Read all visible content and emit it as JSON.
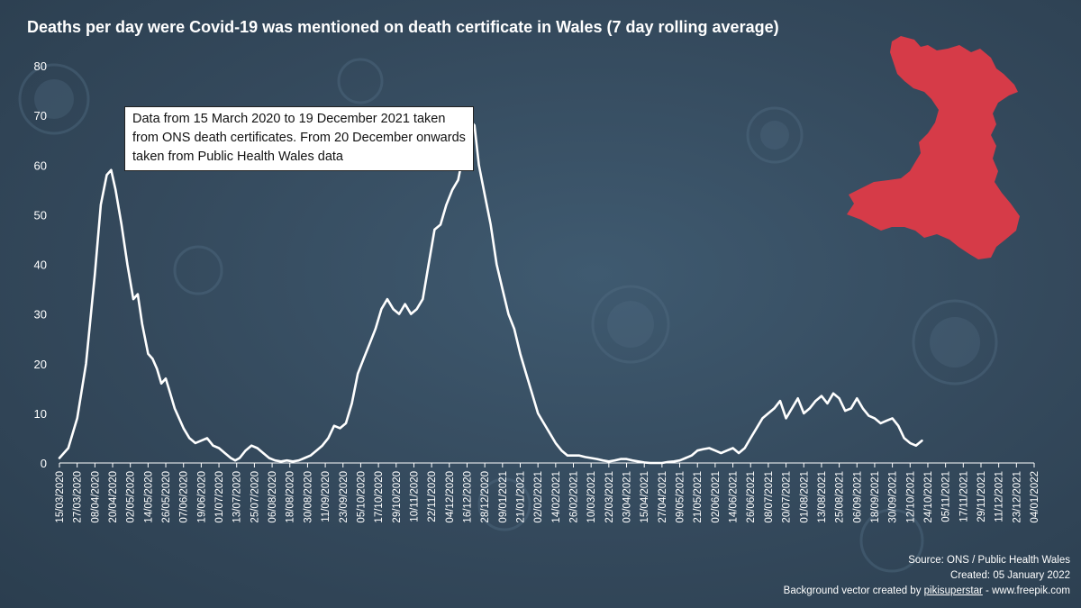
{
  "title": "Deaths per day were Covid-19 was mentioned on death certificate in Wales (7 day rolling average)",
  "note": "Data from 15 March 2020 to 19 December 2021 taken from ONS death certificates.  From 20 December onwards taken from Public Health Wales data",
  "credits": {
    "source": "Source: ONS / Public Health Wales",
    "created": "Created: 05 January 2022",
    "bg_prefix": "Background vector created by ",
    "bg_author": "pikisuperstar",
    "bg_suffix": " - www.freepik.com"
  },
  "colors": {
    "line": "#ffffff",
    "map": "#d63b48",
    "axis": "#ffffff"
  },
  "map_icon": "wales-map-icon",
  "chart_data": {
    "type": "line",
    "title": "Deaths per day were Covid-19 was mentioned on death certificate in Wales (7 day rolling average)",
    "xlabel": "",
    "ylabel": "",
    "ylim": [
      0,
      80
    ],
    "yticks": [
      0,
      10,
      20,
      30,
      40,
      50,
      60,
      70,
      80
    ],
    "x_start": "2020-03-15",
    "x_step_days": 12,
    "xtick_labels": [
      "15/03/2020",
      "27/03/2020",
      "08/04/2020",
      "20/04/2020",
      "02/05/2020",
      "14/05/2020",
      "26/05/2020",
      "07/06/2020",
      "19/06/2020",
      "01/07/2020",
      "13/07/2020",
      "25/07/2020",
      "06/08/2020",
      "18/08/2020",
      "30/08/2020",
      "11/09/2020",
      "23/09/2020",
      "05/10/2020",
      "17/10/2020",
      "29/10/2020",
      "10/11/2020",
      "22/11/2020",
      "04/12/2020",
      "16/12/2020",
      "28/12/2020",
      "09/01/2021",
      "21/01/2021",
      "02/02/2021",
      "14/02/2021",
      "26/02/2021",
      "10/03/2021",
      "22/03/2021",
      "03/04/2021",
      "15/04/2021",
      "27/04/2021",
      "09/05/2021",
      "21/05/2021",
      "02/06/2021",
      "14/06/2021",
      "26/06/2021",
      "08/07/2021",
      "20/07/2021",
      "01/08/2021",
      "13/08/2021",
      "25/08/2021",
      "06/09/2021",
      "18/09/2021",
      "30/09/2021",
      "12/10/2021",
      "24/10/2021",
      "05/11/2021",
      "17/11/2021",
      "29/11/2021",
      "11/12/2021",
      "23/12/2021",
      "04/01/2022"
    ],
    "series": [
      {
        "name": "7 day rolling average",
        "points": [
          [
            0,
            1
          ],
          [
            6,
            3
          ],
          [
            12,
            9
          ],
          [
            18,
            20
          ],
          [
            24,
            38
          ],
          [
            28,
            52
          ],
          [
            32,
            58
          ],
          [
            35,
            59
          ],
          [
            38,
            55
          ],
          [
            42,
            48
          ],
          [
            46,
            40
          ],
          [
            50,
            33
          ],
          [
            53,
            34
          ],
          [
            56,
            28
          ],
          [
            60,
            22
          ],
          [
            63,
            21
          ],
          [
            66,
            19
          ],
          [
            69,
            16
          ],
          [
            72,
            17
          ],
          [
            75,
            14
          ],
          [
            78,
            11
          ],
          [
            81,
            9
          ],
          [
            84,
            7
          ],
          [
            88,
            5
          ],
          [
            92,
            4
          ],
          [
            96,
            4.5
          ],
          [
            100,
            5
          ],
          [
            104,
            3.5
          ],
          [
            108,
            3
          ],
          [
            112,
            2
          ],
          [
            116,
            1
          ],
          [
            119,
            0.5
          ],
          [
            122,
            1
          ],
          [
            126,
            2.5
          ],
          [
            130,
            3.5
          ],
          [
            134,
            3
          ],
          [
            138,
            2
          ],
          [
            142,
            1
          ],
          [
            146,
            0.5
          ],
          [
            150,
            0.3
          ],
          [
            154,
            0.5
          ],
          [
            158,
            0.3
          ],
          [
            162,
            0.5
          ],
          [
            166,
            1
          ],
          [
            170,
            1.5
          ],
          [
            174,
            2.5
          ],
          [
            178,
            3.5
          ],
          [
            182,
            5
          ],
          [
            186,
            7.5
          ],
          [
            190,
            7
          ],
          [
            194,
            8
          ],
          [
            198,
            12
          ],
          [
            202,
            18
          ],
          [
            206,
            21
          ],
          [
            210,
            24
          ],
          [
            214,
            27
          ],
          [
            218,
            31
          ],
          [
            222,
            33
          ],
          [
            226,
            31
          ],
          [
            230,
            30
          ],
          [
            234,
            32
          ],
          [
            238,
            30
          ],
          [
            242,
            31
          ],
          [
            246,
            33
          ],
          [
            250,
            40
          ],
          [
            254,
            47
          ],
          [
            258,
            48
          ],
          [
            262,
            52
          ],
          [
            266,
            55
          ],
          [
            270,
            57
          ],
          [
            274,
            63
          ],
          [
            278,
            69
          ],
          [
            281,
            68
          ],
          [
            284,
            60
          ],
          [
            288,
            54
          ],
          [
            292,
            48
          ],
          [
            296,
            40
          ],
          [
            300,
            35
          ],
          [
            304,
            30
          ],
          [
            308,
            27
          ],
          [
            312,
            22
          ],
          [
            316,
            18
          ],
          [
            320,
            14
          ],
          [
            324,
            10
          ],
          [
            328,
            8
          ],
          [
            332,
            6
          ],
          [
            336,
            4
          ],
          [
            340,
            2.5
          ],
          [
            344,
            1.5
          ],
          [
            348,
            1.5
          ],
          [
            352,
            1.5
          ],
          [
            356,
            1.2
          ],
          [
            360,
            1
          ],
          [
            364,
            0.8
          ],
          [
            368,
            0.5
          ],
          [
            372,
            0.3
          ],
          [
            376,
            0.5
          ],
          [
            380,
            0.8
          ],
          [
            384,
            0.8
          ],
          [
            388,
            0.5
          ],
          [
            392,
            0.3
          ],
          [
            396,
            0.1
          ],
          [
            400,
            0
          ],
          [
            404,
            0
          ],
          [
            408,
            0
          ],
          [
            412,
            0.2
          ],
          [
            416,
            0.3
          ],
          [
            420,
            0.5
          ],
          [
            424,
            1
          ],
          [
            428,
            1.5
          ],
          [
            432,
            2.5
          ],
          [
            436,
            2.8
          ],
          [
            440,
            3
          ],
          [
            444,
            2.5
          ],
          [
            448,
            2
          ],
          [
            452,
            2.5
          ],
          [
            456,
            3
          ],
          [
            460,
            2
          ],
          [
            464,
            3
          ],
          [
            468,
            5
          ],
          [
            472,
            7
          ],
          [
            476,
            9
          ],
          [
            480,
            10
          ],
          [
            484,
            11
          ],
          [
            488,
            12.5
          ],
          [
            492,
            9
          ],
          [
            496,
            11
          ],
          [
            500,
            13
          ],
          [
            504,
            10
          ],
          [
            508,
            11
          ],
          [
            512,
            12.5
          ],
          [
            516,
            13.5
          ],
          [
            520,
            12
          ],
          [
            524,
            14
          ],
          [
            528,
            13
          ],
          [
            532,
            10.5
          ],
          [
            536,
            11
          ],
          [
            540,
            13
          ],
          [
            544,
            11
          ],
          [
            548,
            9.5
          ],
          [
            552,
            9
          ],
          [
            556,
            8
          ],
          [
            560,
            8.5
          ],
          [
            564,
            9
          ],
          [
            568,
            7.5
          ],
          [
            572,
            5
          ],
          [
            576,
            4
          ],
          [
            580,
            3.5
          ],
          [
            584,
            4.5
          ]
        ]
      }
    ]
  }
}
